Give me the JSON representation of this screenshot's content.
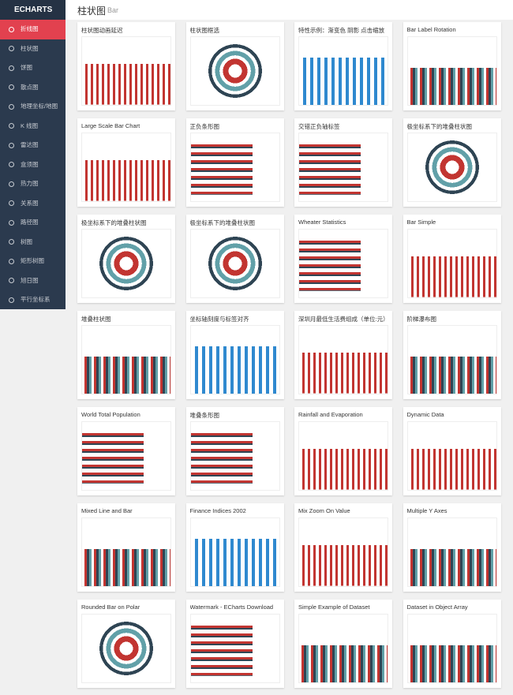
{
  "logo": "ECHARTS",
  "sidebar": [
    "折线图",
    "柱状图",
    "饼图",
    "散点图",
    "地理坐标/地图",
    "K 线图",
    "雷达图",
    "盒须图",
    "热力图",
    "关系图",
    "路径图",
    "树图",
    "矩形树图",
    "旭日图",
    "平行坐标系"
  ],
  "header": {
    "title": "柱状图",
    "subtitle": "Bar"
  },
  "cards": [
    "柱状图动画延迟",
    "柱状图框选",
    "特性示例：渐变色 阴影 点击缩放",
    "Bar Label Rotation",
    "Large Scale Bar Chart",
    "正负条形图",
    "交错正负轴标签",
    "极坐标系下的堆叠柱状图",
    "极坐标系下的堆叠柱状图",
    "极坐标系下的堆叠柱状图",
    "Wheater Statistics",
    "Bar Simple",
    "堆叠柱状图",
    "坐标轴刻度与标签对齐",
    "深圳月最低生活费组成（单位:元）",
    "阶梯瀑布图",
    "World Total Population",
    "堆叠条形图",
    "Rainfall and Evaporation",
    "Dynamic Data",
    "Mixed Line and Bar",
    "Finance Indices 2002",
    "Mix Zoom On Value",
    "Multiple Y Axes",
    "Rounded Bar on Polar",
    "Watermark - ECharts Download",
    "Simple Example of Dataset",
    "Dataset in Object Array"
  ]
}
